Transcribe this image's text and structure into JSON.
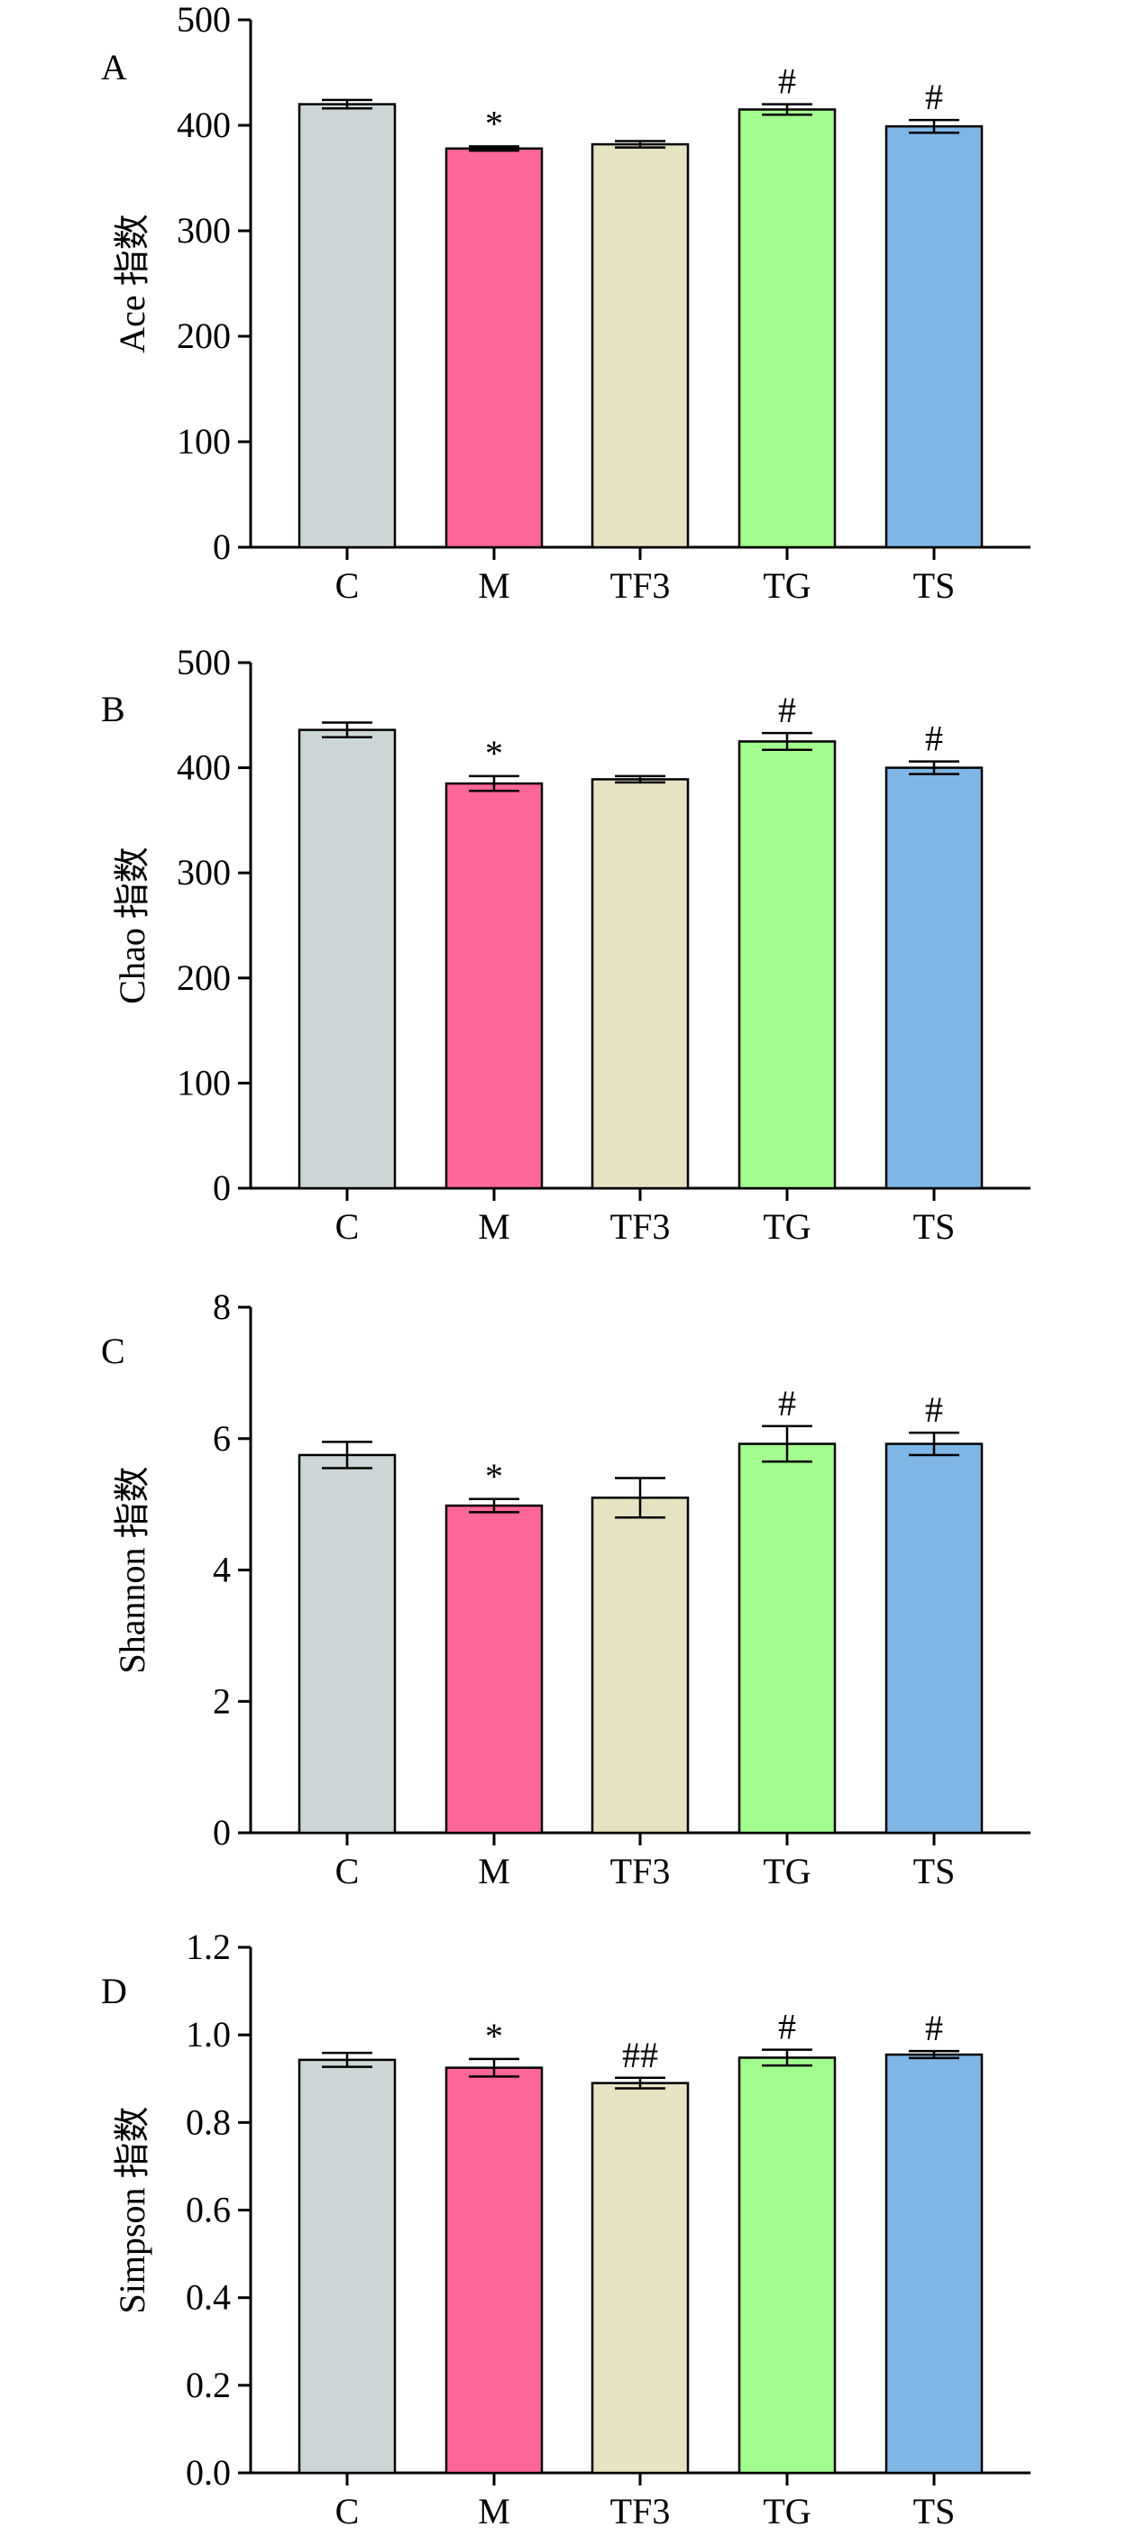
{
  "chart_data": [
    {
      "type": "bar",
      "panel_label": "A",
      "ylabel": "Ace 指数",
      "categories": [
        "C",
        "M",
        "TF3",
        "TG",
        "TS"
      ],
      "values": [
        420,
        378,
        382,
        415,
        399
      ],
      "errors": [
        4,
        2,
        3,
        5,
        6
      ],
      "significance": [
        "",
        "*",
        "",
        "#",
        "#"
      ],
      "ylim": [
        0,
        500
      ],
      "yticks": [
        0,
        100,
        200,
        300,
        400,
        500
      ],
      "ytick_labels": [
        "0",
        "100",
        "200",
        "300",
        "400",
        "500"
      ],
      "colors": [
        "#cdd6d6",
        "#ff6699",
        "#e6e3c2",
        "#a2ff8e",
        "#7fb6e6"
      ]
    },
    {
      "type": "bar",
      "panel_label": "B",
      "ylabel": "Chao 指数",
      "categories": [
        "C",
        "M",
        "TF3",
        "TG",
        "TS"
      ],
      "values": [
        436,
        385,
        389,
        425,
        400
      ],
      "errors": [
        7,
        7,
        3,
        8,
        6
      ],
      "significance": [
        "",
        "*",
        "",
        "#",
        "#"
      ],
      "ylim": [
        0,
        500
      ],
      "yticks": [
        0,
        100,
        200,
        300,
        400,
        500
      ],
      "ytick_labels": [
        "0",
        "100",
        "200",
        "300",
        "400",
        "500"
      ],
      "colors": [
        "#cdd6d6",
        "#ff6699",
        "#e6e3c2",
        "#a2ff8e",
        "#7fb6e6"
      ]
    },
    {
      "type": "bar",
      "panel_label": "C",
      "ylabel": "Shannon 指数",
      "categories": [
        "C",
        "M",
        "TF3",
        "TG",
        "TS"
      ],
      "values": [
        5.75,
        4.98,
        5.1,
        5.92,
        5.92
      ],
      "errors": [
        0.2,
        0.1,
        0.3,
        0.27,
        0.17
      ],
      "significance": [
        "",
        "*",
        "",
        "#",
        "#"
      ],
      "ylim": [
        0,
        8
      ],
      "yticks": [
        0,
        2,
        4,
        6,
        8
      ],
      "ytick_labels": [
        "0",
        "2",
        "4",
        "6",
        "8"
      ],
      "colors": [
        "#cdd6d6",
        "#ff6699",
        "#e6e3c2",
        "#a2ff8e",
        "#7fb6e6"
      ]
    },
    {
      "type": "bar",
      "panel_label": "D",
      "ylabel": "Simpson 指数",
      "categories": [
        "C",
        "M",
        "TF3",
        "TG",
        "TS"
      ],
      "values": [
        0.943,
        0.925,
        0.89,
        0.948,
        0.955
      ],
      "errors": [
        0.016,
        0.02,
        0.012,
        0.018,
        0.008
      ],
      "significance": [
        "",
        "*",
        "##",
        "#",
        "#"
      ],
      "ylim": [
        0,
        1.2
      ],
      "yticks": [
        0,
        0.2,
        0.4,
        0.6,
        0.8,
        1.0,
        1.2
      ],
      "ytick_labels": [
        "0.0",
        "0.2",
        "0.4",
        "0.6",
        "0.8",
        "1.0",
        "1.2"
      ],
      "colors": [
        "#cdd6d6",
        "#ff6699",
        "#e6e3c2",
        "#a2ff8e",
        "#7fb6e6"
      ]
    }
  ]
}
